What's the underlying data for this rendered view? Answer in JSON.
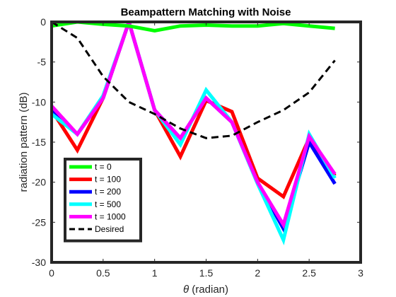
{
  "chart_data": {
    "type": "line",
    "title": "Beampattern Matching with Noise",
    "xlabel_symbol": "θ",
    "xlabel": " (radian)",
    "ylabel": "radiation pattern (dB)",
    "xlim": [
      0,
      3
    ],
    "ylim": [
      -30,
      0
    ],
    "xticks": [
      0,
      0.5,
      1,
      1.5,
      2,
      2.5,
      3
    ],
    "xtick_labels": [
      "0",
      "0.5",
      "1",
      "1.5",
      "2",
      "2.5",
      "3"
    ],
    "yticks": [
      0,
      -5,
      -10,
      -15,
      -20,
      -25,
      -30
    ],
    "ytick_labels": [
      "0",
      "-5",
      "-10",
      "-15",
      "-20",
      "-25",
      "-30"
    ],
    "grid": false,
    "legend_position": "bottom-left",
    "x": [
      0,
      0.25,
      0.5,
      0.75,
      1.0,
      1.25,
      1.5,
      1.75,
      2.0,
      2.25,
      2.5,
      2.75
    ],
    "series": [
      {
        "name": "t = 0",
        "color": "#00ff00",
        "style": "solid",
        "values": [
          -0.5,
          0,
          -0.3,
          -0.5,
          -1.1,
          -0.5,
          -0.4,
          -0.5,
          -0.5,
          -0.2,
          -0.5,
          -0.8
        ]
      },
      {
        "name": "t = 100",
        "color": "#ff0000",
        "style": "solid",
        "values": [
          -11.0,
          -16.0,
          -9.5,
          0,
          -11.0,
          -16.8,
          -9.8,
          -11.2,
          -19.5,
          -21.8,
          -14.5,
          -19.2
        ]
      },
      {
        "name": "t = 200",
        "color": "#0000ff",
        "style": "solid",
        "values": [
          -11.0,
          -14.0,
          -9.5,
          0,
          -11.0,
          -14.5,
          -9.5,
          -12.5,
          -20.0,
          -25.8,
          -15.0,
          -20.2
        ]
      },
      {
        "name": "t = 500",
        "color": "#00ffff",
        "style": "solid",
        "values": [
          -11.5,
          -14.0,
          -9.2,
          0,
          -11.0,
          -15.3,
          -8.5,
          -12.5,
          -20.2,
          -27.2,
          -14.0,
          -19.5
        ]
      },
      {
        "name": "t = 1000",
        "color": "#ff00ff",
        "style": "solid",
        "values": [
          -10.5,
          -14.0,
          -9.5,
          0,
          -11.0,
          -14.5,
          -9.5,
          -12.5,
          -20.0,
          -25.3,
          -14.3,
          -19.0
        ]
      },
      {
        "name": "Desired",
        "color": "#000000",
        "style": "dashed",
        "values": [
          0,
          -2.0,
          -6.8,
          -10.0,
          -11.5,
          -13.3,
          -14.5,
          -14.2,
          -12.5,
          -11.0,
          -8.8,
          -4.8
        ]
      }
    ]
  }
}
